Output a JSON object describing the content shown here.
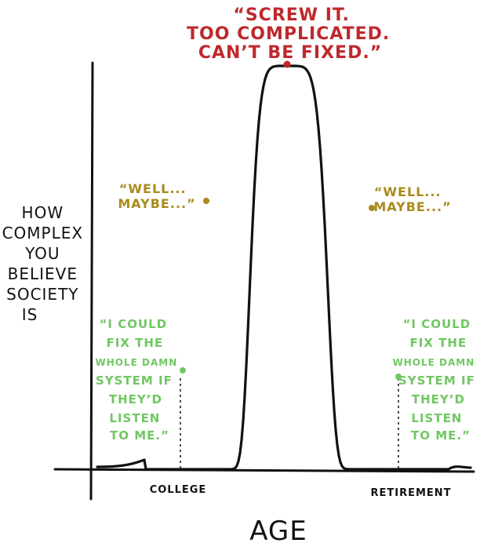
{
  "chart_data": {
    "type": "line",
    "xlabel": "AGE",
    "ylabel": [
      "HOW",
      "COMPLEX",
      "YOU",
      "BELIEVE",
      "SOCIETY",
      "IS"
    ],
    "x_markers": [
      {
        "label": "COLLEGE"
      },
      {
        "label": "RETIREMENT"
      }
    ],
    "annotations": [
      {
        "id": "peak",
        "lines": [
          "“SCREW IT.",
          "TOO COMPLICATED.",
          "CAN’T BE FIXED.”"
        ],
        "color": "#c0282c"
      },
      {
        "id": "well-left",
        "lines": [
          "“WELL...",
          "MAYBE...”"
        ],
        "color": "#a98b1b"
      },
      {
        "id": "well-right",
        "lines": [
          "“WELL...",
          "MAYBE...”"
        ],
        "color": "#a98b1b"
      },
      {
        "id": "fix-left",
        "lines": [
          "“I COULD",
          "FIX THE",
          "WHOLE DAMN",
          "SYSTEM IF",
          "THEY’D",
          "LISTEN",
          "TO ME.”"
        ],
        "color": "#71c763"
      },
      {
        "id": "fix-right",
        "lines": [
          "“I COULD",
          "FIX THE",
          "WHOLE DAMN",
          "SYSTEM IF",
          "THEY’D",
          "LISTEN",
          "TO ME.”"
        ],
        "color": "#71c763"
      }
    ],
    "colors": {
      "curve": "#111111",
      "peak": "#c0282c",
      "maybe": "#a98b1b",
      "fix": "#71c763"
    }
  }
}
